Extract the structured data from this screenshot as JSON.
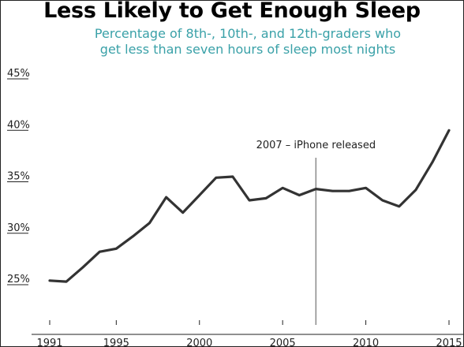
{
  "chart_data": {
    "type": "line",
    "title": "Less Likely to Get Enough Sleep",
    "subtitle_lines": [
      "Percentage of 8th-, 10th-, and 12th-graders who",
      "get less than seven hours of sleep most nights"
    ],
    "xlabel": "",
    "ylabel": "",
    "xlim": [
      1991,
      2015
    ],
    "ylim": [
      25,
      45
    ],
    "x_ticks": [
      1991,
      1995,
      2000,
      2005,
      2010,
      2015
    ],
    "y_ticks": [
      25,
      30,
      35,
      40,
      45
    ],
    "y_tick_labels": [
      "25%",
      "30%",
      "35%",
      "40%",
      "45%"
    ],
    "grid": false,
    "x": [
      1991,
      1992,
      1993,
      1994,
      1995,
      1996,
      1997,
      1998,
      1999,
      2000,
      2001,
      2002,
      2003,
      2004,
      2005,
      2006,
      2007,
      2008,
      2009,
      2010,
      2011,
      2012,
      2013,
      2014,
      2015
    ],
    "values": [
      25.4,
      25.3,
      26.7,
      28.2,
      28.5,
      29.7,
      31.0,
      33.5,
      32.0,
      33.7,
      35.4,
      35.5,
      33.2,
      33.4,
      34.4,
      33.7,
      34.3,
      34.1,
      34.1,
      34.4,
      33.2,
      32.6,
      34.2,
      36.9,
      40.0
    ],
    "annotation": {
      "x": 2007,
      "label": "2007 – iPhone released"
    },
    "line_color": "#333333"
  }
}
